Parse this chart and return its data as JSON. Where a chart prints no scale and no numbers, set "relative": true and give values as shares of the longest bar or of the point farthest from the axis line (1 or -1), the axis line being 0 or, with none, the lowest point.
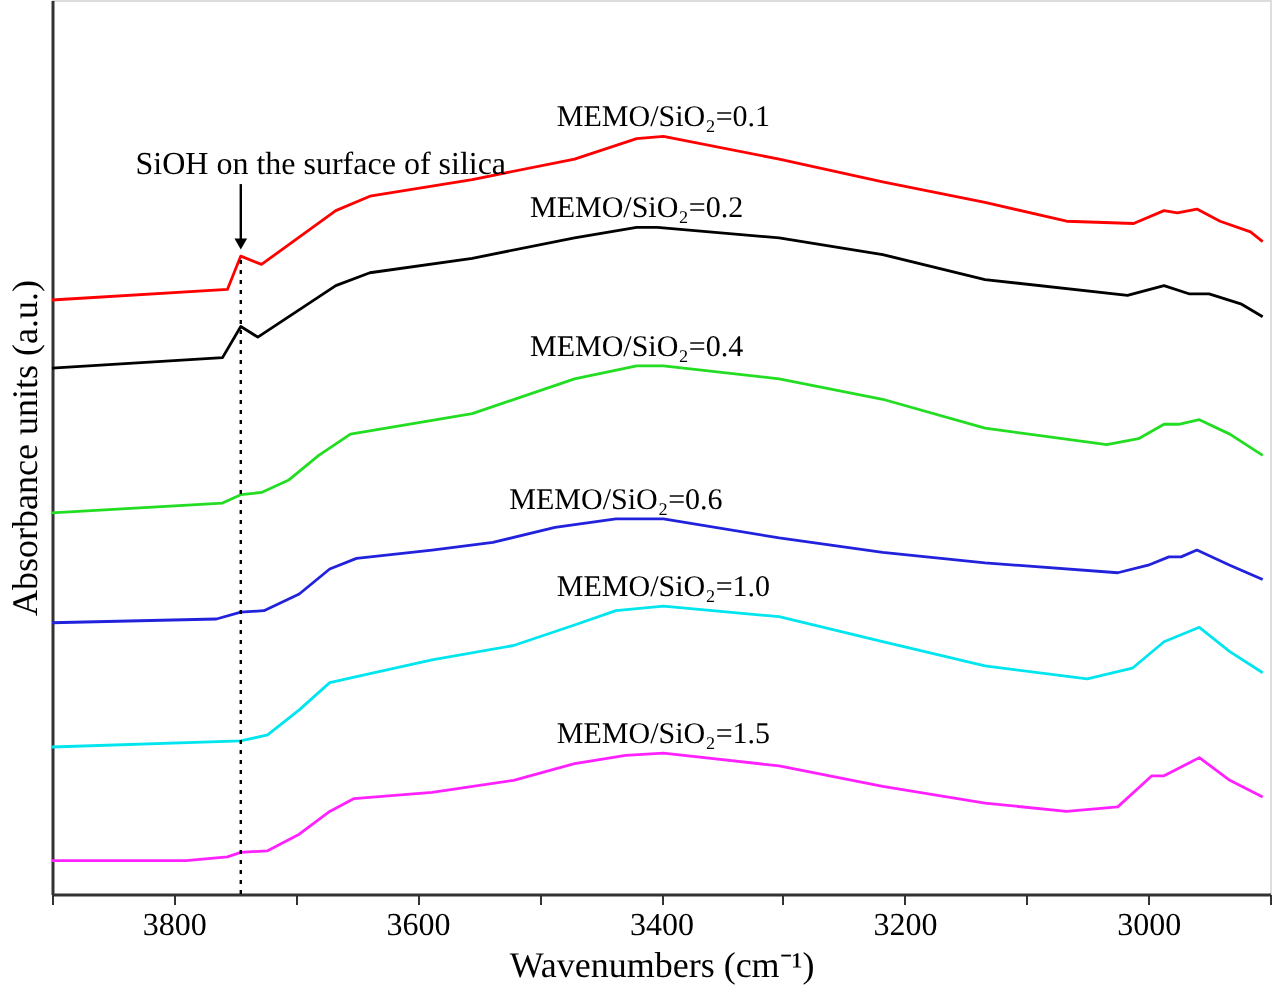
{
  "chart_data": {
    "type": "line",
    "relative": true,
    "xlabel": "Wavenumbers (cm⁻¹)",
    "ylabel": "Absorbance units (a.u.)",
    "xlim": [
      3900,
      2900
    ],
    "xticks": [
      {
        "value": 3900,
        "label": null
      },
      3800,
      {
        "value": 3700,
        "label": null
      },
      3600,
      {
        "value": 3500,
        "label": null
      },
      3400,
      {
        "value": 3300,
        "label": null
      },
      3200,
      {
        "value": 3100,
        "label": null
      },
      3000,
      {
        "value": 2900,
        "label": null
      }
    ],
    "tick_labels": "x",
    "grid": false,
    "legend": false,
    "marker": "none",
    "line_style": "solid",
    "annotations": [
      {
        "text": "SiOH on the surface of silica",
        "x": 3745,
        "y": 0.842
      }
    ],
    "ref_lines": [
      {
        "axis": "x",
        "value": 3745,
        "label": null,
        "color": "#000000",
        "line_style": "dotted"
      }
    ],
    "series": [
      {
        "name": "MEMO/SiO₂=0.1",
        "color": "#ff0000",
        "x": [
          3900,
          3756,
          3745,
          3728,
          3667,
          3639,
          3555,
          3471,
          3420,
          3398,
          3303,
          3218,
          3134,
          3067,
          3012,
          2987,
          2976,
          2960,
          2941,
          2916,
          2906
        ],
        "values": [
          0.784,
          0.798,
          0.842,
          0.831,
          0.902,
          0.921,
          0.943,
          0.97,
          0.997,
          1.0,
          0.97,
          0.94,
          0.913,
          0.888,
          0.885,
          0.902,
          0.899,
          0.904,
          0.888,
          0.874,
          0.861
        ]
      },
      {
        "name": "MEMO/SiO₂=0.2",
        "color": "#000000",
        "x": [
          3900,
          3760,
          3745,
          3731,
          3667,
          3639,
          3555,
          3471,
          3420,
          3403,
          3303,
          3218,
          3134,
          3017,
          2987,
          2966,
          2950,
          2924,
          2906
        ],
        "values": [
          0.694,
          0.708,
          0.749,
          0.735,
          0.803,
          0.82,
          0.839,
          0.866,
          0.88,
          0.88,
          0.866,
          0.844,
          0.811,
          0.79,
          0.803,
          0.792,
          0.792,
          0.779,
          0.762
        ]
      },
      {
        "name": "MEMO/SiO₂=0.4",
        "color": "#22dd22",
        "x": [
          3900,
          3760,
          3745,
          3728,
          3706,
          3681,
          3655,
          3555,
          3471,
          3420,
          3398,
          3303,
          3218,
          3134,
          3034,
          3008,
          2987,
          2975,
          2958,
          2933,
          2906
        ],
        "values": [
          0.503,
          0.516,
          0.527,
          0.53,
          0.546,
          0.579,
          0.607,
          0.634,
          0.68,
          0.697,
          0.697,
          0.68,
          0.653,
          0.615,
          0.593,
          0.601,
          0.62,
          0.62,
          0.626,
          0.607,
          0.579
        ]
      },
      {
        "name": "MEMO/SiO₂=0.6",
        "color": "#2222dd",
        "x": [
          3900,
          3765,
          3745,
          3726,
          3697,
          3672,
          3650,
          3588,
          3538,
          3487,
          3437,
          3398,
          3303,
          3218,
          3134,
          3025,
          3000,
          2983,
          2973,
          2960,
          2933,
          2906
        ],
        "values": [
          0.358,
          0.363,
          0.372,
          0.374,
          0.396,
          0.429,
          0.443,
          0.454,
          0.464,
          0.484,
          0.495,
          0.495,
          0.47,
          0.451,
          0.437,
          0.424,
          0.434,
          0.445,
          0.445,
          0.454,
          0.434,
          0.415
        ]
      },
      {
        "name": "MEMO/SiO₂=1.0",
        "color": "#00e5ee",
        "x": [
          3900,
          3745,
          3723,
          3697,
          3672,
          3650,
          3588,
          3521,
          3471,
          3437,
          3398,
          3303,
          3218,
          3134,
          3050,
          3013,
          2987,
          2958,
          2933,
          2906
        ],
        "values": [
          0.194,
          0.202,
          0.21,
          0.243,
          0.279,
          0.287,
          0.309,
          0.328,
          0.355,
          0.374,
          0.38,
          0.366,
          0.333,
          0.301,
          0.284,
          0.298,
          0.333,
          0.352,
          0.32,
          0.292
        ]
      },
      {
        "name": "MEMO/SiO₂=1.5",
        "color": "#ff22ff",
        "x": [
          3900,
          3790,
          3756,
          3745,
          3723,
          3697,
          3672,
          3652,
          3588,
          3521,
          3471,
          3429,
          3398,
          3303,
          3218,
          3134,
          3067,
          3025,
          2997,
          2987,
          2958,
          2933,
          2906
        ],
        "values": [
          0.044,
          0.044,
          0.049,
          0.055,
          0.057,
          0.079,
          0.109,
          0.126,
          0.134,
          0.15,
          0.172,
          0.183,
          0.186,
          0.169,
          0.142,
          0.12,
          0.109,
          0.115,
          0.156,
          0.156,
          0.18,
          0.15,
          0.128
        ]
      }
    ]
  }
}
